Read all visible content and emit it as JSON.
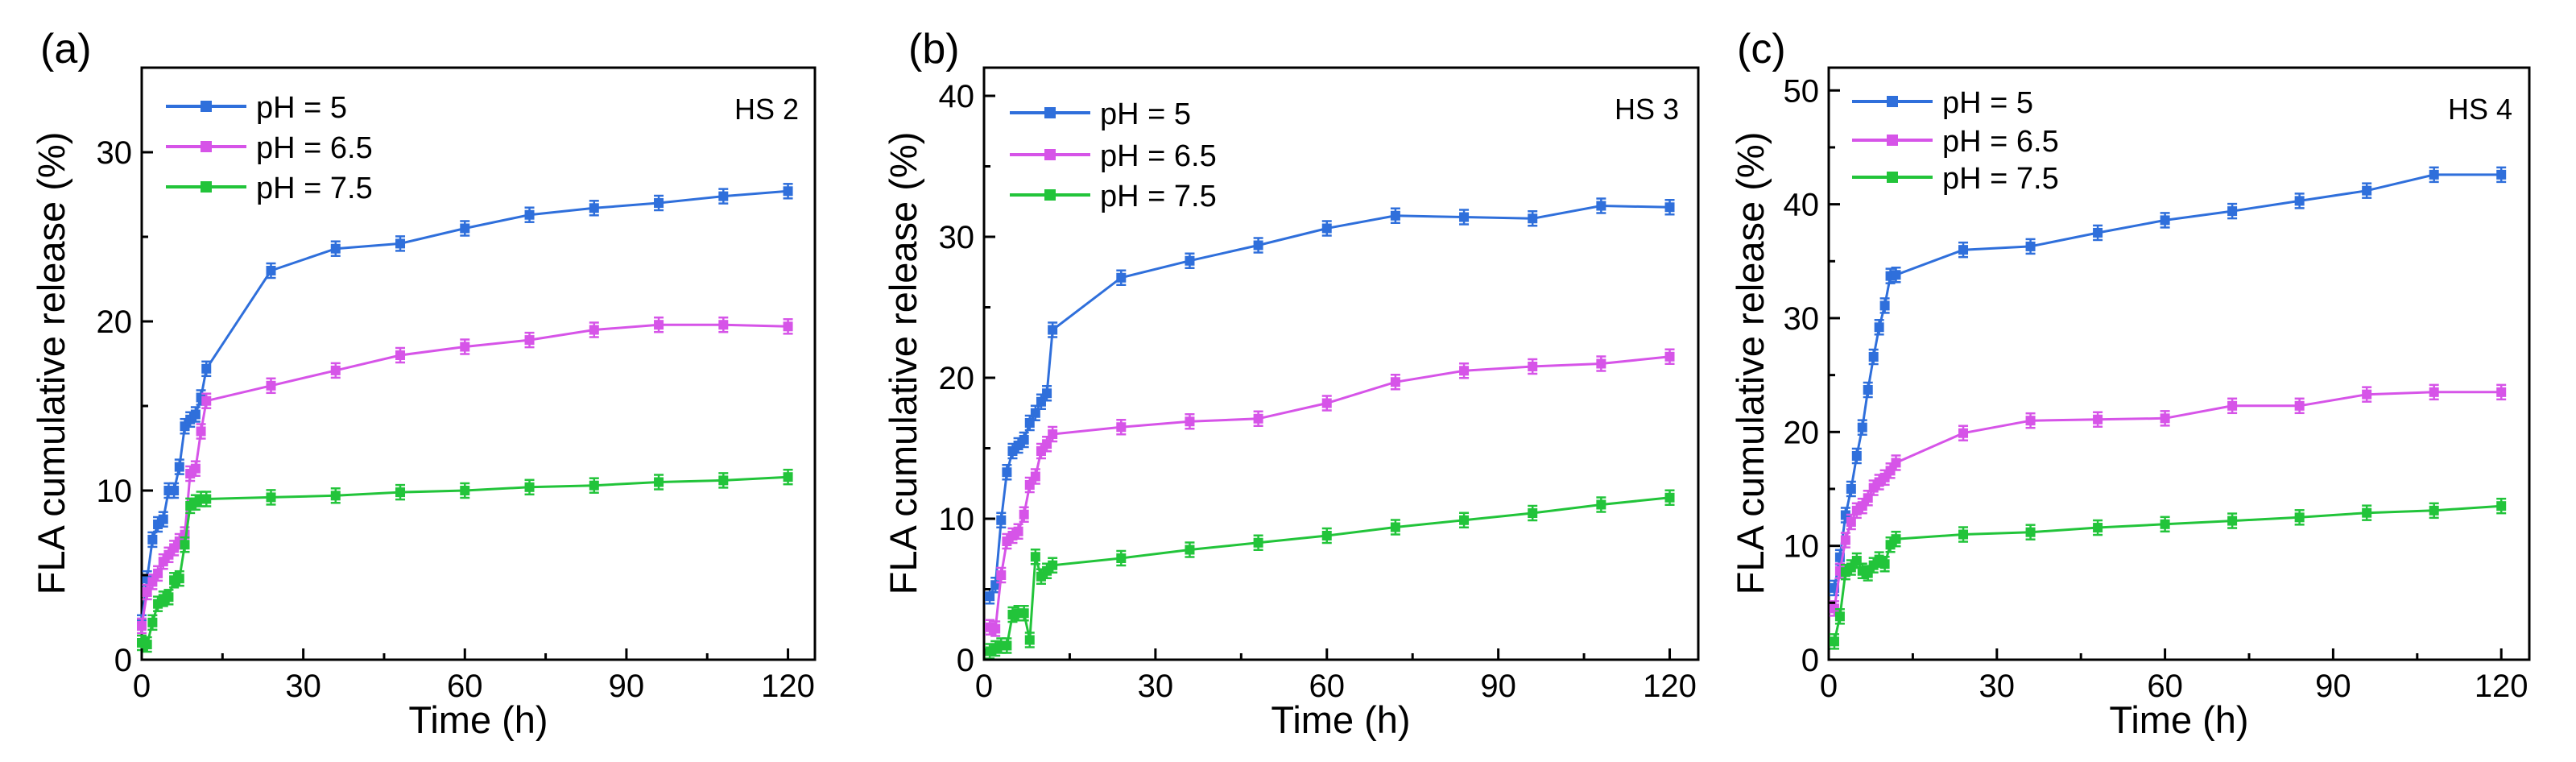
{
  "colors": {
    "pH5": "#2f6fdb",
    "pH65": "#d654e8",
    "pH75": "#22c43a"
  },
  "chart_data": [
    {
      "type": "line",
      "panel_label": "(a)",
      "sample": "HS 2",
      "xlabel": "Time (h)",
      "ylabel": "FLA cumulative release (%)",
      "xlim": [
        0,
        125
      ],
      "ylim": [
        0,
        35
      ],
      "xticks": [
        0,
        30,
        60,
        90,
        120
      ],
      "yticks": [
        0,
        10,
        20,
        30
      ],
      "xtick_labels": [
        "0",
        "30",
        "60",
        "90",
        "120"
      ],
      "ytick_labels": [
        "0",
        "10",
        "20",
        "30"
      ],
      "legend_position": "top-left",
      "series": [
        {
          "name": "pH = 5",
          "color_key": "pH5",
          "x": [
            0,
            1,
            2,
            3,
            4,
            5,
            6,
            7,
            8,
            9,
            10,
            11,
            12,
            24,
            36,
            48,
            60,
            72,
            84,
            96,
            108,
            120
          ],
          "y": [
            2.2,
            4.8,
            7.1,
            8.0,
            8.3,
            10.0,
            10.0,
            11.4,
            13.8,
            14.2,
            14.5,
            15.5,
            17.2,
            23.0,
            24.3,
            24.6,
            25.5,
            26.3,
            26.7,
            27.0,
            27.4,
            27.7
          ]
        },
        {
          "name": "pH = 6.5",
          "color_key": "pH65",
          "x": [
            0,
            1,
            2,
            3,
            4,
            5,
            6,
            7,
            8,
            9,
            10,
            11,
            12,
            24,
            36,
            48,
            60,
            72,
            84,
            96,
            108,
            120
          ],
          "y": [
            2.0,
            4.0,
            4.6,
            5.1,
            5.8,
            6.2,
            6.6,
            7.0,
            7.4,
            11.0,
            11.3,
            13.5,
            15.3,
            16.2,
            17.1,
            18.0,
            18.5,
            18.9,
            19.5,
            19.8,
            19.8,
            19.7
          ]
        },
        {
          "name": "pH = 7.5",
          "color_key": "pH75",
          "x": [
            0,
            1,
            2,
            3,
            4,
            5,
            6,
            7,
            8,
            9,
            10,
            11,
            12,
            24,
            36,
            48,
            60,
            72,
            84,
            96,
            108,
            120
          ],
          "y": [
            1.0,
            0.9,
            2.2,
            3.3,
            3.6,
            3.7,
            4.7,
            4.8,
            6.8,
            9.1,
            9.3,
            9.5,
            9.5,
            9.6,
            9.7,
            9.9,
            10.0,
            10.2,
            10.3,
            10.5,
            10.6,
            10.8
          ]
        }
      ]
    },
    {
      "type": "line",
      "panel_label": "(b)",
      "sample": "HS 3",
      "xlabel": "Time (h)",
      "ylabel": "FLA cumulative release (%)",
      "xlim": [
        0,
        125
      ],
      "ylim": [
        0,
        42
      ],
      "xticks": [
        0,
        30,
        60,
        90,
        120
      ],
      "yticks": [
        0,
        10,
        20,
        30,
        40
      ],
      "xtick_labels": [
        "0",
        "30",
        "60",
        "90",
        "120"
      ],
      "ytick_labels": [
        "0",
        "10",
        "20",
        "30",
        "40"
      ],
      "legend_position": "top-left",
      "series": [
        {
          "name": "pH = 5",
          "color_key": "pH5",
          "x": [
            1,
            2,
            3,
            4,
            5,
            6,
            7,
            8,
            9,
            10,
            11,
            12,
            24,
            36,
            48,
            60,
            72,
            84,
            96,
            108,
            120
          ],
          "y": [
            4.5,
            5.3,
            9.9,
            13.3,
            14.8,
            15.2,
            15.6,
            16.8,
            17.5,
            18.3,
            18.9,
            23.4,
            27.1,
            28.3,
            29.4,
            30.6,
            31.5,
            31.4,
            31.3,
            32.2,
            32.1
          ]
        },
        {
          "name": "pH = 6.5",
          "color_key": "pH65",
          "x": [
            1,
            2,
            3,
            4,
            5,
            6,
            7,
            8,
            9,
            10,
            11,
            12,
            24,
            36,
            48,
            60,
            72,
            84,
            96,
            108,
            120
          ],
          "y": [
            2.3,
            2.2,
            6.0,
            8.4,
            8.8,
            9.1,
            10.3,
            12.4,
            13.0,
            14.8,
            15.3,
            16.0,
            16.5,
            16.9,
            17.1,
            18.2,
            19.7,
            20.5,
            20.8,
            21.0,
            21.5
          ]
        },
        {
          "name": "pH = 7.5",
          "color_key": "pH75",
          "x": [
            1,
            2,
            3,
            4,
            5,
            6,
            7,
            8,
            9,
            10,
            11,
            12,
            24,
            36,
            48,
            60,
            72,
            84,
            96,
            108,
            120
          ],
          "y": [
            0.6,
            0.8,
            1.0,
            1.0,
            3.2,
            3.3,
            3.3,
            1.4,
            7.3,
            5.9,
            6.3,
            6.7,
            7.2,
            7.8,
            8.3,
            8.8,
            9.4,
            9.9,
            10.4,
            11.0,
            11.5
          ]
        }
      ]
    },
    {
      "type": "line",
      "panel_label": "(c)",
      "sample": "HS 4",
      "xlabel": "Time (h)",
      "ylabel": "FLA cumulative release (%)",
      "xlim": [
        0,
        125
      ],
      "ylim": [
        0,
        52
      ],
      "xticks": [
        0,
        30,
        60,
        90,
        120
      ],
      "yticks": [
        0,
        10,
        20,
        30,
        40,
        50
      ],
      "xtick_labels": [
        "0",
        "30",
        "60",
        "90",
        "120"
      ],
      "ytick_labels": [
        "0",
        "10",
        "20",
        "30",
        "40",
        "50"
      ],
      "legend_position": "top-left",
      "series": [
        {
          "name": "pH = 5",
          "color_key": "pH5",
          "x": [
            1,
            2,
            3,
            4,
            5,
            6,
            7,
            8,
            9,
            10,
            11,
            12,
            24,
            36,
            48,
            60,
            72,
            84,
            96,
            108,
            120
          ],
          "y": [
            6.3,
            9.0,
            12.7,
            15.0,
            17.9,
            20.4,
            23.7,
            26.6,
            29.2,
            31.1,
            33.7,
            33.8,
            36.0,
            36.3,
            37.5,
            38.6,
            39.4,
            40.3,
            41.2,
            42.6,
            42.6
          ]
        },
        {
          "name": "pH = 6.5",
          "color_key": "pH65",
          "x": [
            1,
            2,
            3,
            4,
            5,
            6,
            7,
            8,
            9,
            10,
            11,
            12,
            24,
            36,
            48,
            60,
            72,
            84,
            96,
            108,
            120
          ],
          "y": [
            4.5,
            7.8,
            10.5,
            12.1,
            13.1,
            13.5,
            14.2,
            15.1,
            15.6,
            16.0,
            16.6,
            17.3,
            19.9,
            21.0,
            21.1,
            21.2,
            22.3,
            22.3,
            23.3,
            23.5,
            23.5
          ]
        },
        {
          "name": "pH = 7.5",
          "color_key": "pH75",
          "x": [
            1,
            2,
            3,
            4,
            5,
            6,
            7,
            8,
            9,
            10,
            11,
            12,
            24,
            36,
            48,
            60,
            72,
            84,
            96,
            108,
            120
          ],
          "y": [
            1.6,
            3.8,
            7.7,
            8.1,
            8.7,
            7.8,
            7.6,
            8.3,
            8.8,
            8.4,
            10.1,
            10.6,
            11.0,
            11.2,
            11.6,
            11.9,
            12.2,
            12.5,
            12.9,
            13.1,
            13.5
          ]
        }
      ]
    }
  ]
}
